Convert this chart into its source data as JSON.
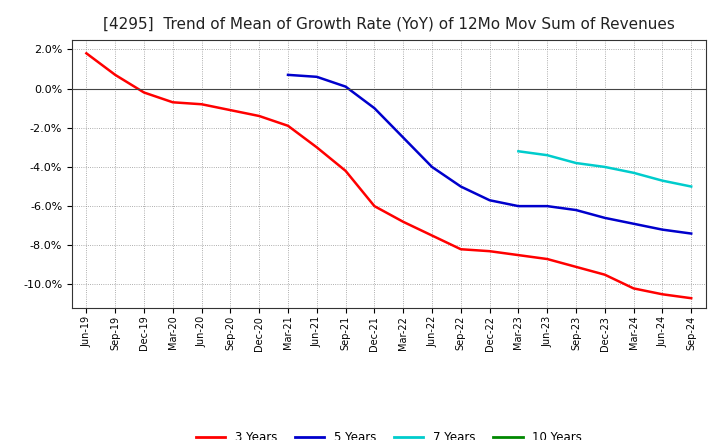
{
  "title": "[4295]  Trend of Mean of Growth Rate (YoY) of 12Mo Mov Sum of Revenues",
  "title_fontsize": 11,
  "title_fontweight": "normal",
  "background_color": "#ffffff",
  "grid_color": "#aaaaaa",
  "ylim": [
    -0.112,
    0.025
  ],
  "yticks": [
    0.02,
    0.0,
    -0.02,
    -0.04,
    -0.06,
    -0.08,
    -0.1
  ],
  "x_labels": [
    "Jun-19",
    "Sep-19",
    "Dec-19",
    "Mar-20",
    "Jun-20",
    "Sep-20",
    "Dec-20",
    "Mar-21",
    "Jun-21",
    "Sep-21",
    "Dec-21",
    "Mar-22",
    "Jun-22",
    "Sep-22",
    "Dec-22",
    "Mar-23",
    "Jun-23",
    "Sep-23",
    "Dec-23",
    "Mar-24",
    "Jun-24",
    "Sep-24"
  ],
  "series_3y": {
    "color": "#ff0000",
    "label": "3 Years",
    "x": [
      0,
      1,
      2,
      3,
      4,
      5,
      6,
      7,
      8,
      9,
      10,
      11,
      12,
      13,
      14,
      15,
      16,
      17,
      18,
      19,
      20,
      21
    ],
    "y": [
      0.018,
      0.007,
      -0.002,
      -0.007,
      -0.008,
      -0.011,
      -0.014,
      -0.019,
      -0.03,
      -0.042,
      -0.06,
      -0.068,
      -0.075,
      -0.082,
      -0.083,
      -0.085,
      -0.087,
      -0.091,
      -0.095,
      -0.102,
      -0.105,
      -0.107
    ]
  },
  "series_5y": {
    "color": "#0000cc",
    "label": "5 Years",
    "x": [
      7,
      8,
      9,
      10,
      11,
      12,
      13,
      14,
      15,
      16,
      17,
      18,
      19,
      20,
      21
    ],
    "y": [
      0.007,
      0.006,
      0.001,
      -0.01,
      -0.025,
      -0.04,
      -0.05,
      -0.057,
      -0.06,
      -0.06,
      -0.062,
      -0.066,
      -0.069,
      -0.072,
      -0.074
    ]
  },
  "series_7y": {
    "color": "#00cccc",
    "label": "7 Years",
    "x": [
      15,
      16,
      17,
      18,
      19,
      20,
      21
    ],
    "y": [
      -0.032,
      -0.034,
      -0.038,
      -0.04,
      -0.043,
      -0.047,
      -0.05
    ]
  },
  "series_10y": {
    "color": "#008800",
    "label": "10 Years",
    "x": [],
    "y": []
  },
  "line_width": 1.8
}
